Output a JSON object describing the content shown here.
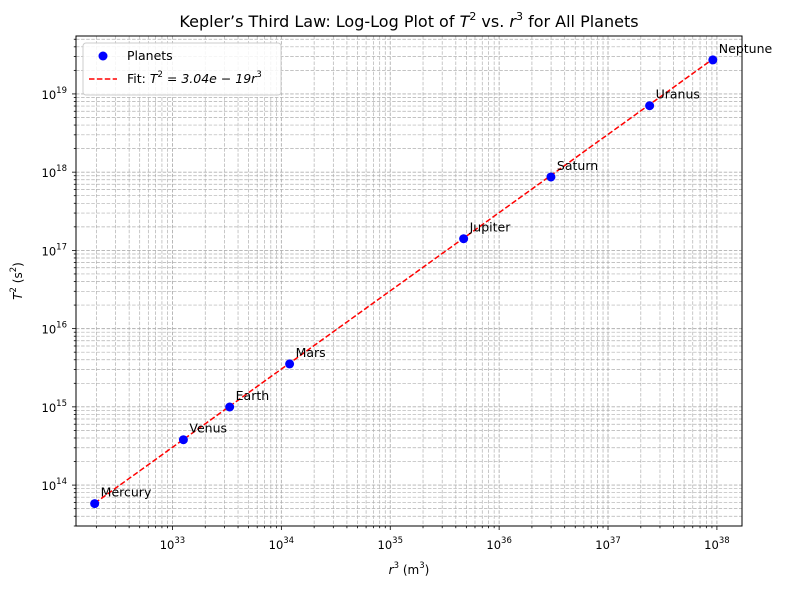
{
  "chart_data": {
    "type": "scatter",
    "title_text": "Kepler’s Third Law: Log-Log Plot of ",
    "title_T": "T",
    "title_exp2": "2",
    "title_mid": " vs. ",
    "title_r": "r",
    "title_exp3": "3",
    "title_tail": " for All Planets",
    "xlabel": {
      "var": "r",
      "exp": "3",
      "unit_open": " (m",
      "unit_exp": "3",
      "unit_close": ")"
    },
    "ylabel": {
      "var": "T",
      "exp": "2",
      "unit_open": " (s",
      "unit_exp": "2",
      "unit_close": ")"
    },
    "xscale": "log",
    "yscale": "log",
    "xlim": [
      1.3e+32,
      1.7e+38
    ],
    "ylim": [
      30000000000000.0,
      5.5e+19
    ],
    "grid": true,
    "legend_position": "top-left",
    "x_ticks": [
      {
        "value": 1e+33,
        "base": "10",
        "exp": "33"
      },
      {
        "value": 1e+34,
        "base": "10",
        "exp": "34"
      },
      {
        "value": 1e+35,
        "base": "10",
        "exp": "35"
      },
      {
        "value": 1e+36,
        "base": "10",
        "exp": "36"
      },
      {
        "value": 1e+37,
        "base": "10",
        "exp": "37"
      },
      {
        "value": 1e+38,
        "base": "10",
        "exp": "38"
      }
    ],
    "y_ticks": [
      {
        "value": 100000000000000.0,
        "base": "10",
        "exp": "14"
      },
      {
        "value": 1000000000000000.0,
        "base": "10",
        "exp": "15"
      },
      {
        "value": 1e+16,
        "base": "10",
        "exp": "16"
      },
      {
        "value": 1e+17,
        "base": "10",
        "exp": "17"
      },
      {
        "value": 1e+18,
        "base": "10",
        "exp": "18"
      },
      {
        "value": 1e+19,
        "base": "10",
        "exp": "19"
      }
    ],
    "series": [
      {
        "name": "Planets",
        "kind": "scatter",
        "color": "#0000ff",
        "points": [
          {
            "label": "Mercury",
            "x": 1.93e+32,
            "y": 58000000000000.0
          },
          {
            "label": "Venus",
            "x": 1.26e+33,
            "y": 380000000000000.0
          },
          {
            "label": "Earth",
            "x": 3.35e+33,
            "y": 996000000000000.0
          },
          {
            "label": "Mars",
            "x": 1.19e+34,
            "y": 3540000000000000.0
          },
          {
            "label": "Jupiter",
            "x": 4.72e+35,
            "y": 1.41e+17
          },
          {
            "label": "Saturn",
            "x": 2.99e+36,
            "y": 8.68e+17
          },
          {
            "label": "Uranus",
            "x": 2.41e+37,
            "y": 7.07e+18
          },
          {
            "label": "Neptune",
            "x": 9.17e+37,
            "y": 2.72e+19
          }
        ]
      },
      {
        "name": "Fit",
        "kind": "line",
        "color": "#ff0000",
        "dashed": true,
        "legend_math": "T",
        "legend_eq": " = 3.04e − 19r",
        "legend_prefix": "Fit: ",
        "legend_exp_left": "2",
        "legend_exp_right": "3",
        "x": [
          1.93e+32,
          9.17e+37
        ]
      }
    ],
    "fit_coefficient": 3.04e-19
  }
}
